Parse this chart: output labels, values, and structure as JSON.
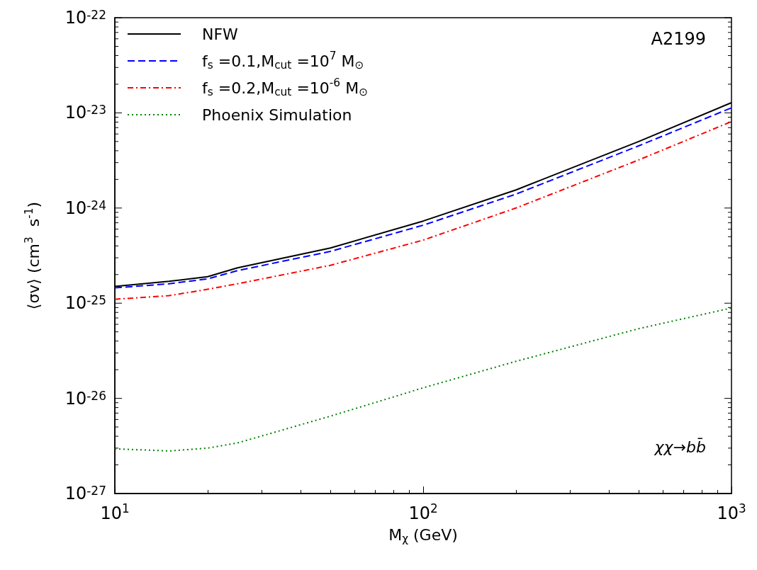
{
  "chart_data": {
    "type": "line",
    "xlabel": "M$_{χ}$ (GeV)",
    "ylabel": "⟨σv⟩ (cm$^{3}$  s$^{-1}$)",
    "log": "xy",
    "marker": "none",
    "grid": false,
    "legend": "top left",
    "xlim": [
      10,
      1000
    ],
    "xticks": [
      {
        "value": 10,
        "label": "10$^{1}$"
      },
      {
        "value": 100,
        "label": "10$^{2}$"
      },
      {
        "value": 1000,
        "label": "10$^{3}$"
      }
    ],
    "ylim": [
      1e-27,
      1e-22
    ],
    "yticks": [
      {
        "value": 1e-27,
        "label": "10$^{-27}$"
      },
      {
        "value": 1e-26,
        "label": "10$^{-26}$"
      },
      {
        "value": 1e-25,
        "label": "10$^{-25}$"
      },
      {
        "value": 1e-24,
        "label": "10$^{-24}$"
      },
      {
        "value": 1e-23,
        "label": "10$^{-23}$"
      },
      {
        "value": 1e-22,
        "label": "10$^{-22}$"
      }
    ],
    "annotations": [
      "A2199",
      "χχ→bb̄"
    ],
    "x": [
      10,
      15,
      20,
      25,
      50,
      100,
      200,
      500,
      1000
    ],
    "series": [
      {
        "name": "NFW",
        "color": "#000000",
        "line_style": "solid",
        "values": [
          1.5e-25,
          1.7e-25,
          1.9e-25,
          2.35e-25,
          3.8e-25,
          7.3e-25,
          1.55e-24,
          5e-24,
          1.28e-23
        ]
      },
      {
        "name": "f$_{s}$ =0.1,M$_{cut}$ =10$^{7}$ M$_{⊙}$",
        "color": "#0000ff",
        "line_style": "dashed",
        "values": [
          1.45e-25,
          1.6e-25,
          1.8e-25,
          2.2e-25,
          3.5e-25,
          6.6e-25,
          1.4e-24,
          4.5e-24,
          1.13e-23
        ]
      },
      {
        "name": "f$_{s}$ =0.2,M$_{cut}$ =10$^{-6}$ M$_{⊙}$",
        "color": "#ff0000",
        "line_style": "dashdot",
        "values": [
          1.1e-25,
          1.2e-25,
          1.4e-25,
          1.6e-25,
          2.5e-25,
          4.6e-25,
          1e-24,
          3.2e-24,
          8.1e-24
        ]
      },
      {
        "name": "Phoenix Simulation",
        "color": "#008000",
        "line_style": "dotted",
        "values": [
          2.95e-27,
          2.8e-27,
          3e-27,
          3.4e-27,
          6.5e-27,
          1.29e-26,
          2.45e-26,
          5.4e-26,
          8.9e-26
        ]
      }
    ]
  }
}
